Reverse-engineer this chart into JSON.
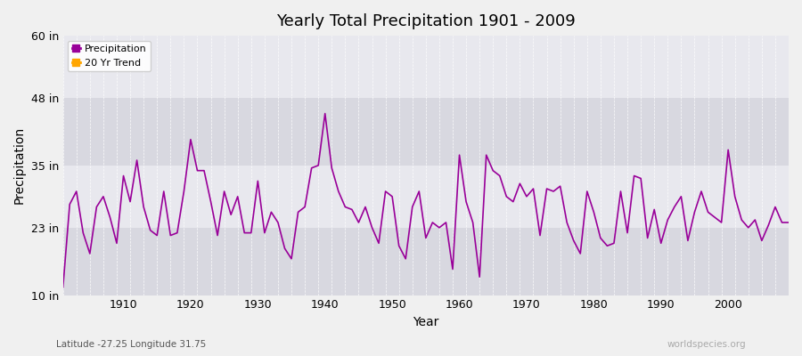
{
  "title": "Yearly Total Precipitation 1901 - 2009",
  "xlabel": "Year",
  "ylabel": "Precipitation",
  "subtitle": "Latitude -27.25 Longitude 31.75",
  "watermark": "worldspecies.org",
  "ylim": [
    10,
    60
  ],
  "xlim": [
    1901,
    2009
  ],
  "yticks": [
    10,
    23,
    35,
    48,
    60
  ],
  "ytick_labels": [
    "10 in",
    "23 in",
    "35 in",
    "48 in",
    "60 in"
  ],
  "xticks": [
    1910,
    1920,
    1930,
    1940,
    1950,
    1960,
    1970,
    1980,
    1990,
    2000
  ],
  "line_color": "#990099",
  "trend_color": "#FFA500",
  "bg_color": "#f0f0f0",
  "plot_bg_color": "#e8e8ee",
  "band1_color": "#d8d8e0",
  "band2_color": "#e8e8ee",
  "years": [
    1901,
    1902,
    1903,
    1904,
    1905,
    1906,
    1907,
    1908,
    1909,
    1910,
    1911,
    1912,
    1913,
    1914,
    1915,
    1916,
    1917,
    1918,
    1919,
    1920,
    1921,
    1922,
    1923,
    1924,
    1925,
    1926,
    1927,
    1928,
    1929,
    1930,
    1931,
    1932,
    1933,
    1934,
    1935,
    1936,
    1937,
    1938,
    1939,
    1940,
    1941,
    1942,
    1943,
    1944,
    1945,
    1946,
    1947,
    1948,
    1949,
    1950,
    1951,
    1952,
    1953,
    1954,
    1955,
    1956,
    1957,
    1958,
    1959,
    1960,
    1961,
    1962,
    1963,
    1964,
    1965,
    1966,
    1967,
    1968,
    1969,
    1970,
    1971,
    1972,
    1973,
    1974,
    1975,
    1976,
    1977,
    1978,
    1979,
    1980,
    1981,
    1982,
    1983,
    1984,
    1985,
    1986,
    1987,
    1988,
    1989,
    1990,
    1991,
    1992,
    1993,
    1994,
    1995,
    1996,
    1997,
    1998,
    1999,
    2000,
    2001,
    2002,
    2003,
    2004,
    2005,
    2006,
    2007,
    2008,
    2009
  ],
  "precip_in": [
    11.5,
    27.5,
    30.0,
    22.0,
    18.0,
    27.0,
    29.0,
    25.0,
    20.0,
    33.0,
    28.0,
    36.0,
    27.0,
    22.5,
    21.5,
    30.0,
    21.5,
    22.0,
    30.0,
    40.0,
    34.0,
    34.0,
    28.0,
    21.5,
    30.0,
    25.5,
    29.0,
    22.0,
    22.0,
    32.0,
    22.0,
    26.0,
    24.0,
    19.0,
    17.0,
    26.0,
    27.0,
    34.5,
    35.0,
    45.0,
    34.5,
    30.0,
    27.0,
    26.5,
    24.0,
    27.0,
    23.0,
    20.0,
    30.0,
    29.0,
    19.5,
    17.0,
    27.0,
    30.0,
    21.0,
    24.0,
    23.0,
    24.0,
    15.0,
    37.0,
    28.0,
    24.0,
    13.5,
    37.0,
    34.0,
    33.0,
    29.0,
    28.0,
    31.5,
    29.0,
    30.5,
    21.5,
    30.5,
    30.0,
    31.0,
    24.0,
    20.5,
    18.0,
    30.0,
    26.0,
    21.0,
    19.5,
    20.0,
    30.0,
    22.0,
    33.0,
    32.5,
    21.0,
    26.5,
    20.0,
    24.5,
    27.0,
    29.0,
    20.5,
    26.0,
    30.0,
    26.0,
    25.0,
    24.0,
    38.0,
    29.0,
    24.5,
    23.0,
    24.5,
    20.5,
    23.5,
    27.0,
    24.0,
    24.0
  ]
}
